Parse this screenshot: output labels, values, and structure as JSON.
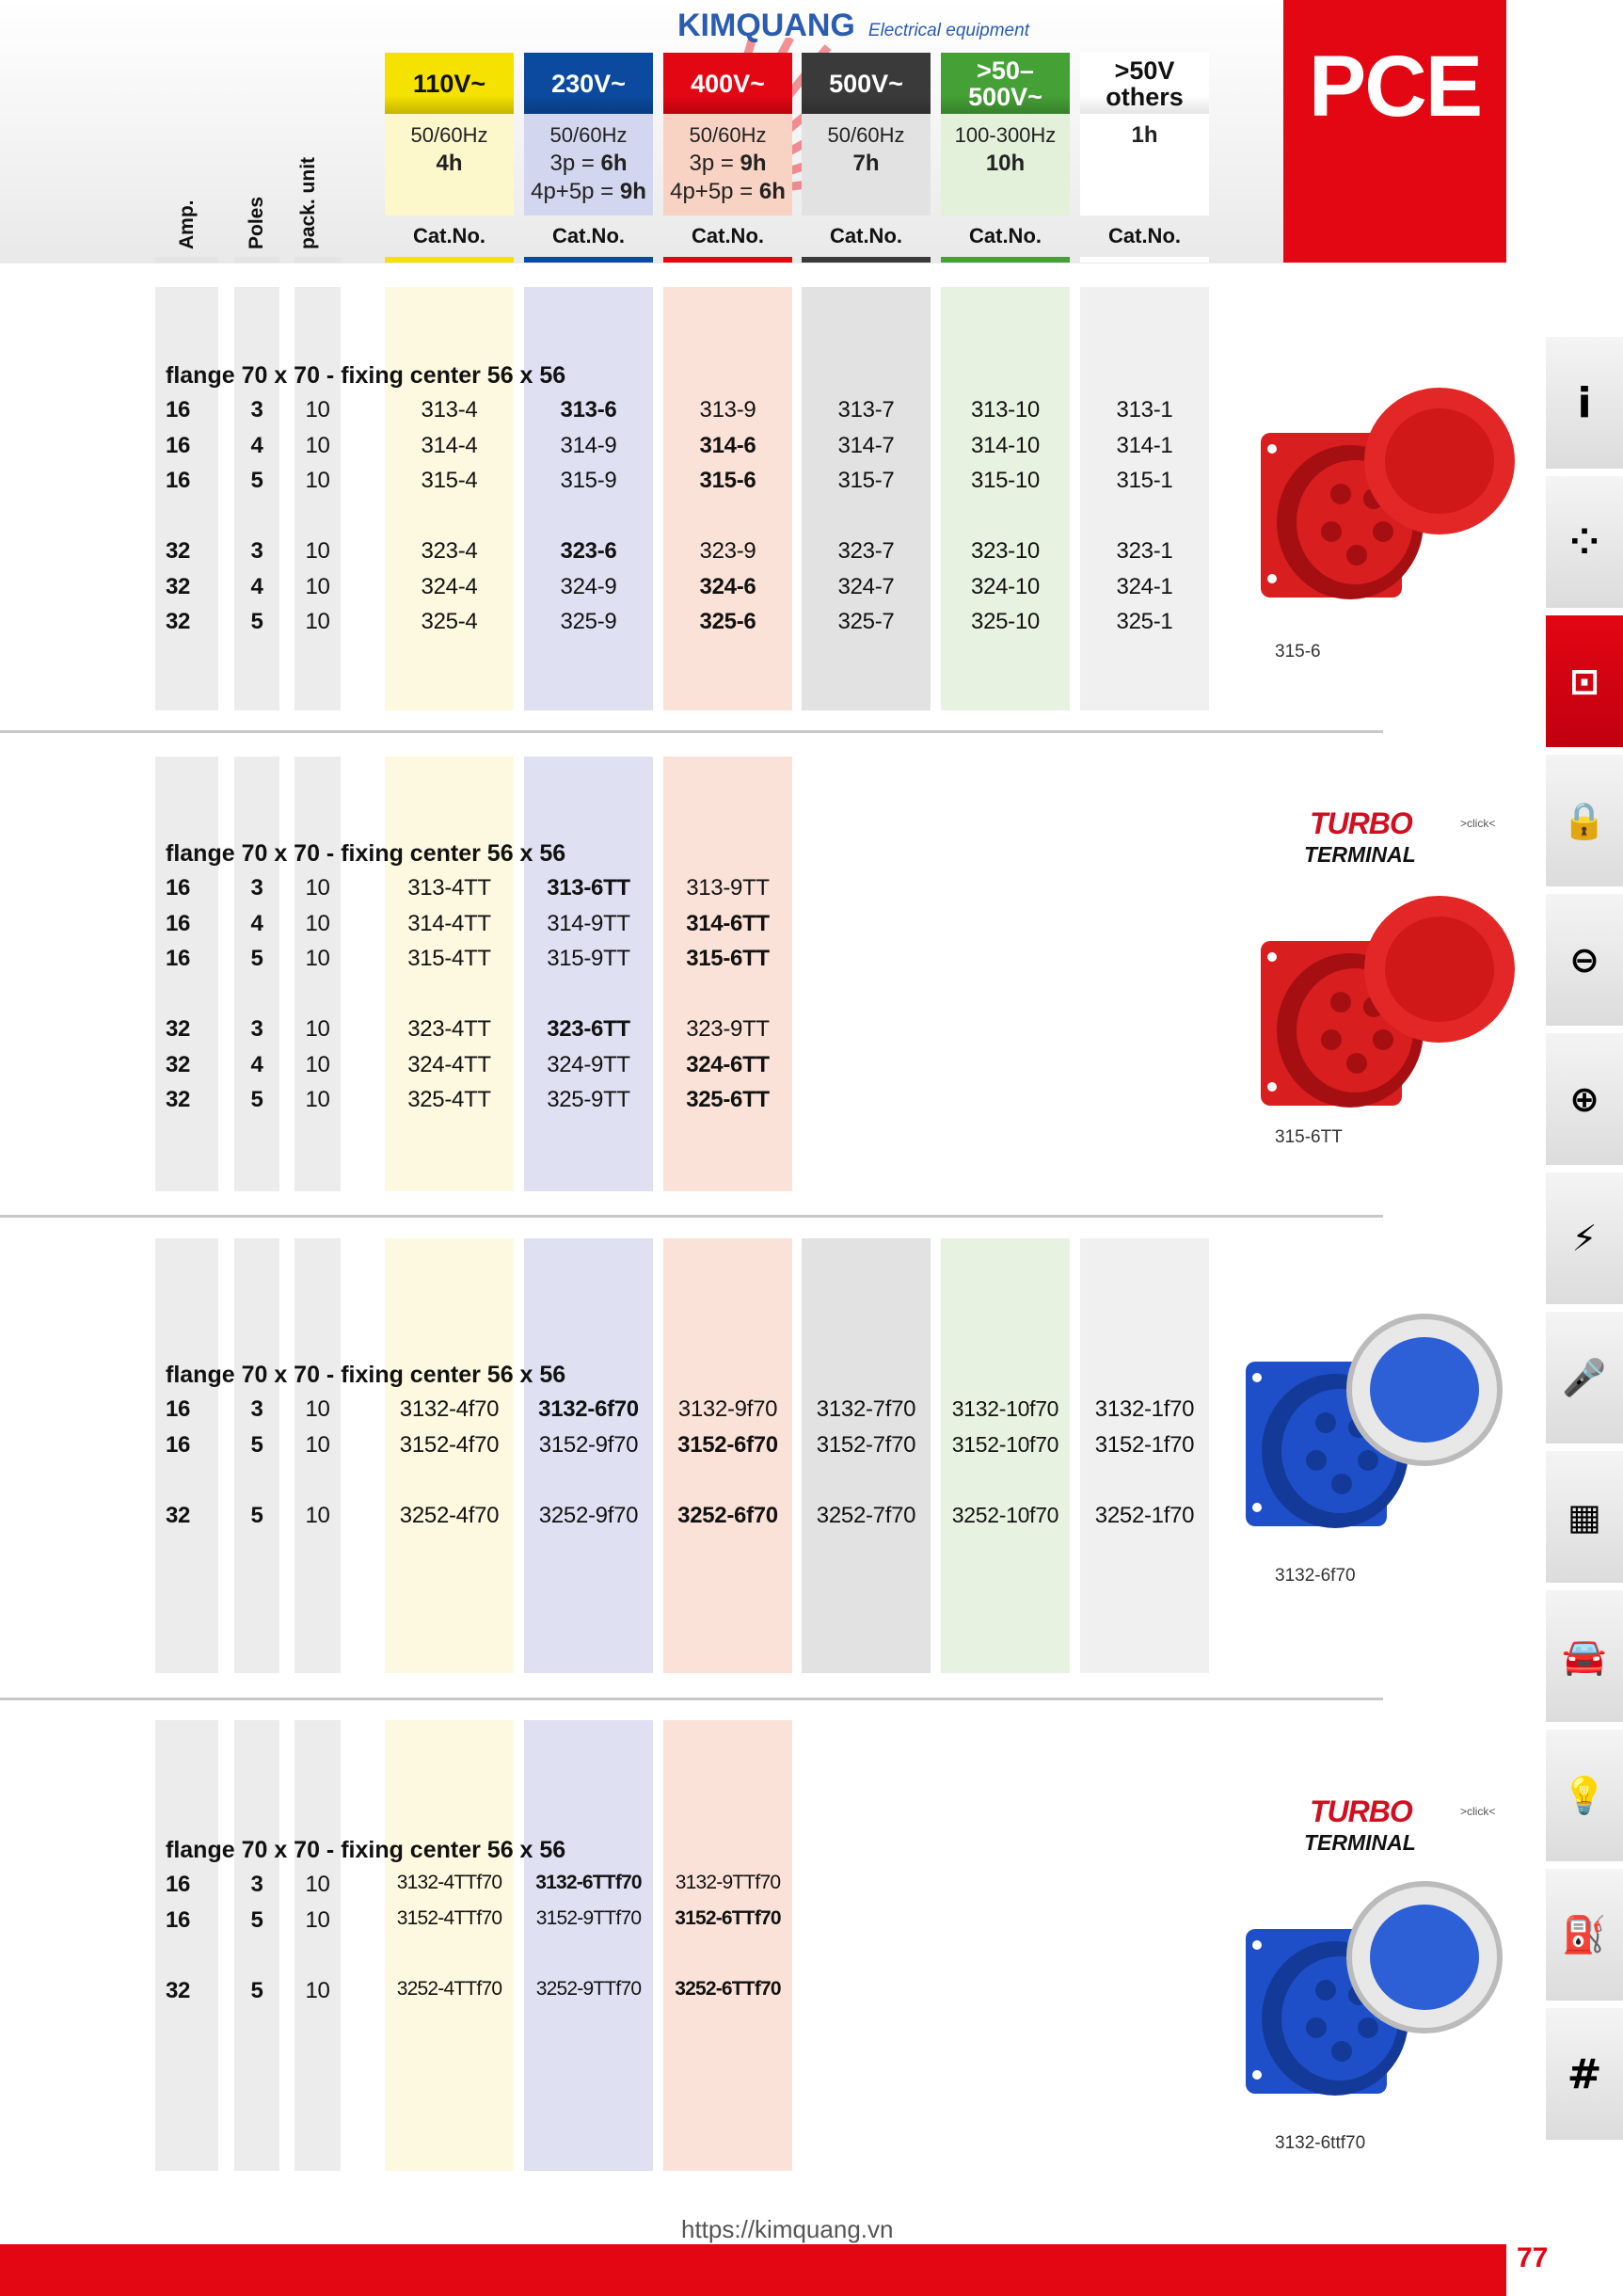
{
  "brand": "PCE",
  "header": {
    "row_labels": [
      "Amp.",
      "Poles",
      "pack. unit"
    ],
    "columns": [
      {
        "voltage": "110V~",
        "freq": "50/60Hz",
        "time_html": "<b>4h</b>",
        "cat": "Cat.No.",
        "color": "#f5e200",
        "light": "#fdf7cc",
        "text": "#111"
      },
      {
        "voltage": "230V~",
        "freq": "50/60Hz",
        "time_html": "3p = <b>6h</b><br>4p+5p = <b>9h</b>",
        "cat": "Cat.No.",
        "color": "#0b4a9e",
        "light": "#d2d6ef",
        "text": "#fff"
      },
      {
        "voltage": "400V~",
        "freq": "50/60Hz",
        "time_html": "3p = <b>9h</b><br>4p+5p = <b>6h</b>",
        "cat": "Cat.No.",
        "color": "#e30613",
        "light": "#f8d3c4",
        "text": "#fff"
      },
      {
        "voltage": "500V~",
        "freq": "50/60Hz",
        "time_html": "<b>7h</b>",
        "cat": "Cat.No.",
        "color": "#3a3a3a",
        "light": "#e2e2e2",
        "text": "#fff"
      },
      {
        "voltage": ">50–500V~",
        "freq": "100-300Hz",
        "time_html": "<b>10h</b>",
        "cat": "Cat.No.",
        "color": "#45a036",
        "light": "#e3f0da",
        "text": "#fff"
      },
      {
        "voltage": ">50V others",
        "freq": "",
        "time_html": "<b>1h</b>",
        "cat": "Cat.No.",
        "color": "#ffffff",
        "light": "#ffffff",
        "text": "#111"
      }
    ],
    "col_bg": [
      "#fdf9e0",
      "#dfe1f3",
      "#fbe2d8",
      "#e2e2e2",
      "#e8f2e1",
      "#f0f0f0"
    ],
    "watermark": {
      "name": "KIMQUANG",
      "tagline": "Electrical equipment"
    }
  },
  "sections": [
    {
      "title": "flange 70 x 70 - fixing center 56 x 56",
      "ncols": 6,
      "caption": "315-6",
      "turbo": false,
      "product_color": "red",
      "rows": [
        {
          "amp": "16",
          "poles": "3",
          "pack": "10",
          "cat": [
            "313-4",
            "313-6",
            "313-9",
            "313-7",
            "313-10",
            "313-1"
          ],
          "bold": 1
        },
        {
          "amp": "16",
          "poles": "4",
          "pack": "10",
          "cat": [
            "314-4",
            "314-9",
            "314-6",
            "314-7",
            "314-10",
            "314-1"
          ],
          "bold": 2
        },
        {
          "amp": "16",
          "poles": "5",
          "pack": "10",
          "cat": [
            "315-4",
            "315-9",
            "315-6",
            "315-7",
            "315-10",
            "315-1"
          ],
          "bold": 2
        },
        null,
        {
          "amp": "32",
          "poles": "3",
          "pack": "10",
          "cat": [
            "323-4",
            "323-6",
            "323-9",
            "323-7",
            "323-10",
            "323-1"
          ],
          "bold": 1
        },
        {
          "amp": "32",
          "poles": "4",
          "pack": "10",
          "cat": [
            "324-4",
            "324-9",
            "324-6",
            "324-7",
            "324-10",
            "324-1"
          ],
          "bold": 2
        },
        {
          "amp": "32",
          "poles": "5",
          "pack": "10",
          "cat": [
            "325-4",
            "325-9",
            "325-6",
            "325-7",
            "325-10",
            "325-1"
          ],
          "bold": 2
        }
      ]
    },
    {
      "title": "flange 70 x 70 - fixing center 56 x 56",
      "ncols": 3,
      "caption": "315-6TT",
      "turbo": true,
      "product_color": "red",
      "rows": [
        {
          "amp": "16",
          "poles": "3",
          "pack": "10",
          "cat": [
            "313-4TT",
            "313-6TT",
            "313-9TT"
          ],
          "bold": 1
        },
        {
          "amp": "16",
          "poles": "4",
          "pack": "10",
          "cat": [
            "314-4TT",
            "314-9TT",
            "314-6TT"
          ],
          "bold": 2
        },
        {
          "amp": "16",
          "poles": "5",
          "pack": "10",
          "cat": [
            "315-4TT",
            "315-9TT",
            "315-6TT"
          ],
          "bold": 2
        },
        null,
        {
          "amp": "32",
          "poles": "3",
          "pack": "10",
          "cat": [
            "323-4TT",
            "323-6TT",
            "323-9TT"
          ],
          "bold": 1
        },
        {
          "amp": "32",
          "poles": "4",
          "pack": "10",
          "cat": [
            "324-4TT",
            "324-9TT",
            "324-6TT"
          ],
          "bold": 2
        },
        {
          "amp": "32",
          "poles": "5",
          "pack": "10",
          "cat": [
            "325-4TT",
            "325-9TT",
            "325-6TT"
          ],
          "bold": 2
        }
      ]
    },
    {
      "title": "flange 70 x 70 - fixing center 56 x 56",
      "ncols": 6,
      "caption": "3132-6f70",
      "turbo": false,
      "product_color": "blue",
      "rows": [
        {
          "amp": "16",
          "poles": "3",
          "pack": "10",
          "cat": [
            "3132-4f70",
            "3132-6f70",
            "3132-9f70",
            "3132-7f70",
            "3132-10f70",
            "3132-1f70"
          ],
          "bold": 1
        },
        {
          "amp": "16",
          "poles": "5",
          "pack": "10",
          "cat": [
            "3152-4f70",
            "3152-9f70",
            "3152-6f70",
            "3152-7f70",
            "3152-10f70",
            "3152-1f70"
          ],
          "bold": 2
        },
        null,
        {
          "amp": "32",
          "poles": "5",
          "pack": "10",
          "cat": [
            "3252-4f70",
            "3252-9f70",
            "3252-6f70",
            "3252-7f70",
            "3252-10f70",
            "3252-1f70"
          ],
          "bold": 2
        }
      ]
    },
    {
      "title": "flange 70 x 70 - fixing center 56 x 56",
      "ncols": 3,
      "caption": "3132-6ttf70",
      "turbo": true,
      "product_color": "blue",
      "rows": [
        {
          "amp": "16",
          "poles": "3",
          "pack": "10",
          "cat": [
            "3132-4TTf70",
            "3132-6TTf70",
            "3132-9TTf70"
          ],
          "bold": 1
        },
        {
          "amp": "16",
          "poles": "5",
          "pack": "10",
          "cat": [
            "3152-4TTf70",
            "3152-9TTf70",
            "3152-6TTf70"
          ],
          "bold": 2
        },
        null,
        {
          "amp": "32",
          "poles": "5",
          "pack": "10",
          "cat": [
            "3252-4TTf70",
            "3252-9TTf70",
            "3252-6TTf70"
          ],
          "bold": 2
        }
      ]
    }
  ],
  "turbo_logo": {
    "line1": "TURBO",
    "line2": "TERMINAL",
    "click": ">click<"
  },
  "sidebar_tabs": [
    {
      "icon": "info-icon",
      "active": false
    },
    {
      "icon": "plug-socket-icon",
      "active": false
    },
    {
      "icon": "panel-socket-icon",
      "active": true
    },
    {
      "icon": "interlocked-socket-icon",
      "active": false
    },
    {
      "icon": "schuko-socket-icon",
      "active": false
    },
    {
      "icon": "schuko-plug-icon",
      "active": false
    },
    {
      "icon": "protection-plug-icon",
      "active": false
    },
    {
      "icon": "microphone-icon",
      "active": false
    },
    {
      "icon": "distribution-board-icon",
      "active": false
    },
    {
      "icon": "vehicle-icon",
      "active": false
    },
    {
      "icon": "light-bulb-icon",
      "active": false
    },
    {
      "icon": "e-mobility-icon",
      "active": false
    },
    {
      "icon": "hash-icon",
      "active": false
    }
  ],
  "footer": {
    "page": "77",
    "url": "https://kimquang.vn",
    "color": "#e30613"
  }
}
